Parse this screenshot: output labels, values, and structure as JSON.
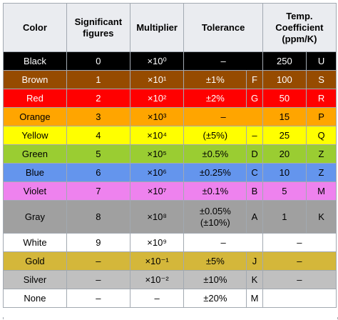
{
  "header": {
    "color": "Color",
    "significant_figures": "Significant figures",
    "multiplier": "Multiplier",
    "tolerance": "Tolerance",
    "temp_coefficient": "Temp. Coefficient (ppm/K)"
  },
  "rows": [
    {
      "color": "Black",
      "bg": "#000000",
      "fg": "#ffffff",
      "sig": "0",
      "mult": "×10⁰",
      "tol": "–",
      "tol_code": "",
      "tc": "250",
      "tc_code": "U"
    },
    {
      "color": "Brown",
      "bg": "#964b00",
      "fg": "#ffffff",
      "sig": "1",
      "mult": "×10¹",
      "tol": "±1%",
      "tol_code": "F",
      "tc": "100",
      "tc_code": "S"
    },
    {
      "color": "Red",
      "bg": "#ff0000",
      "fg": "#ffffff",
      "sig": "2",
      "mult": "×10²",
      "tol": "±2%",
      "tol_code": "G",
      "tc": "50",
      "tc_code": "R"
    },
    {
      "color": "Orange",
      "bg": "#ffa500",
      "fg": "#000000",
      "sig": "3",
      "mult": "×10³",
      "tol": "–",
      "tol_code": "",
      "tc": "15",
      "tc_code": "P"
    },
    {
      "color": "Yellow",
      "bg": "#ffff00",
      "fg": "#000000",
      "sig": "4",
      "mult": "×10⁴",
      "tol": "(±5%)",
      "tol_code": "–",
      "tc": "25",
      "tc_code": "Q"
    },
    {
      "color": "Green",
      "bg": "#9acd32",
      "fg": "#000000",
      "sig": "5",
      "mult": "×10⁵",
      "tol": "±0.5%",
      "tol_code": "D",
      "tc": "20",
      "tc_code": "Z"
    },
    {
      "color": "Blue",
      "bg": "#6495ed",
      "fg": "#000000",
      "sig": "6",
      "mult": "×10⁶",
      "tol": "±0.25%",
      "tol_code": "C",
      "tc": "10",
      "tc_code": "Z"
    },
    {
      "color": "Violet",
      "bg": "#ee82ee",
      "fg": "#000000",
      "sig": "7",
      "mult": "×10⁷",
      "tol": "±0.1%",
      "tol_code": "B",
      "tc": "5",
      "tc_code": "M"
    },
    {
      "color": "Gray",
      "bg": "#a0a0a0",
      "fg": "#000000",
      "sig": "8",
      "mult": "×10⁸",
      "tol": "±0.05% (±10%)",
      "tol_code": "A",
      "tc": "1",
      "tc_code": "K"
    },
    {
      "color": "White",
      "bg": "#ffffff",
      "fg": "#000000",
      "sig": "9",
      "mult": "×10⁹",
      "tol": "–",
      "tol_code": "",
      "tc": "–",
      "tc_code": ""
    },
    {
      "color": "Gold",
      "bg": "#d4b73a",
      "fg": "#000000",
      "sig": "–",
      "mult": "×10⁻¹",
      "tol": "±5%",
      "tol_code": "J",
      "tc": "–",
      "tc_code": ""
    },
    {
      "color": "Silver",
      "bg": "#c0c0c0",
      "fg": "#000000",
      "sig": "–",
      "mult": "×10⁻²",
      "tol": "±10%",
      "tol_code": "K",
      "tc": "–",
      "tc_code": ""
    },
    {
      "color": "None",
      "bg": "#ffffff",
      "fg": "#000000",
      "sig": "–",
      "mult": "–",
      "tol": "±20%",
      "tol_code": "M",
      "tc": "",
      "tc_code": ""
    }
  ]
}
